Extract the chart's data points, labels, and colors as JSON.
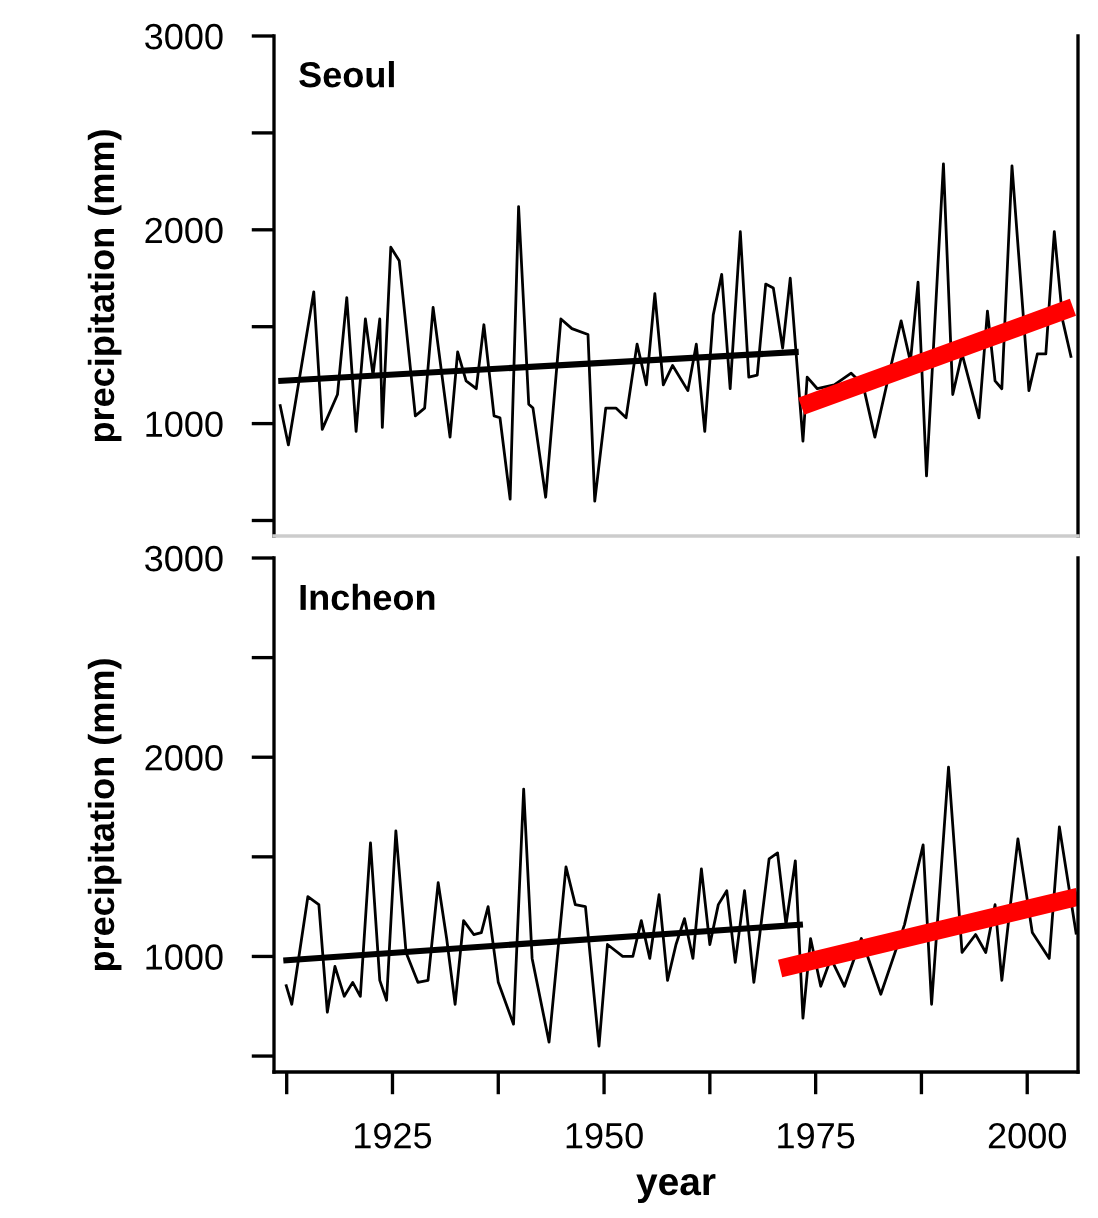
{
  "chart_data": [
    {
      "type": "line",
      "ylabel": "precipitation (mm)",
      "annotations": [
        "Seoul"
      ],
      "xlim": [
        1911,
        2006
      ],
      "ylim": [
        420,
        3000
      ],
      "yticks": [
        {
          "value": 500,
          "label": null
        },
        1000,
        {
          "value": 1500,
          "label": null
        },
        2000,
        {
          "value": 2500,
          "label": null
        },
        3000
      ],
      "tick_labels": "y",
      "grid": false,
      "marker": "none",
      "line_style": "solid",
      "series": [
        {
          "color": "#000000",
          "x": [
            1911.7,
            1912.7,
            1915.7,
            1916.7,
            1918.5,
            1919.6,
            1920.7,
            1921.8,
            1922.7,
            1923.5,
            1923.8,
            1924.8,
            1925.8,
            1927.7,
            1928.8,
            1929.8,
            1931.8,
            1932.7,
            1933.7,
            1934.9,
            1935.8,
            1937.0,
            1937.7,
            1938.9,
            1939.9,
            1941.1,
            1941.6,
            1943.1,
            1944.9,
            1946.2,
            1948.1,
            1948.9,
            1950.2,
            1951.4,
            1952.6,
            1953.9,
            1955.0,
            1956.0,
            1957.0,
            1958.1,
            1959.9,
            1960.9,
            1961.9,
            1962.9,
            1963.9,
            1964.9,
            1966.1,
            1967.1,
            1968.1,
            1969.1,
            1970.0,
            1971.1,
            1972.0,
            1973.5,
            1974.0,
            1975.2,
            1977.2,
            1979.2,
            1980.6,
            1982.0,
            1983.5,
            1985.1,
            1986.2,
            1987.1,
            1988.1,
            1990.1,
            1991.2,
            1992.3,
            1994.3,
            1995.3,
            1996.2,
            1997.0,
            1998.2,
            2000.2,
            2001.2,
            2002.2,
            2003.2,
            2004.2,
            2005.2
          ],
          "values": [
            1100,
            890,
            1680,
            970,
            1150,
            1650,
            960,
            1540,
            1250,
            1540,
            980,
            1910,
            1840,
            1040,
            1080,
            1600,
            930,
            1370,
            1220,
            1180,
            1510,
            1040,
            1030,
            610,
            2120,
            1100,
            1080,
            620,
            1540,
            1490,
            1460,
            600,
            1080,
            1080,
            1030,
            1410,
            1200,
            1670,
            1200,
            1300,
            1170,
            1410,
            960,
            1560,
            1770,
            1180,
            1990,
            1240,
            1250,
            1720,
            1700,
            1390,
            1750,
            910,
            1240,
            1180,
            1200,
            1260,
            1200,
            930,
            1220,
            1530,
            1320,
            1730,
            730,
            2340,
            1150,
            1360,
            1030,
            1580,
            1220,
            1180,
            2330,
            1170,
            1360,
            1360,
            1990,
            1530,
            1340
          ]
        },
        {
          "color": "#000000",
          "x": [
            1911.5,
            1973.0
          ],
          "values": [
            1220,
            1370
          ]
        },
        {
          "color": "#ff0000",
          "x": [
            1973.3,
            2005.4
          ],
          "values": [
            1090,
            1600
          ]
        }
      ]
    },
    {
      "type": "line",
      "ylabel": "precipitation (mm)",
      "xlabel": "year",
      "annotations": [
        "Incheon"
      ],
      "xlim": [
        1911,
        2006
      ],
      "ylim": [
        420,
        3000
      ],
      "xticks": [
        {
          "value": 1912.5,
          "label": null
        },
        1925,
        {
          "value": 1937.5,
          "label": null
        },
        1950,
        {
          "value": 1962.5,
          "label": null
        },
        1975,
        {
          "value": 1987.5,
          "label": null
        },
        2000
      ],
      "yticks": [
        {
          "value": 500,
          "label": null
        },
        1000,
        {
          "value": 1500,
          "label": null
        },
        2000,
        {
          "value": 2500,
          "label": null
        },
        3000
      ],
      "grid": false,
      "marker": "none",
      "line_style": "solid",
      "series": [
        {
          "color": "#000000",
          "x": [
            1912.4,
            1913.1,
            1915.0,
            1916.3,
            1917.3,
            1918.2,
            1919.3,
            1920.3,
            1921.2,
            1922.4,
            1923.5,
            1924.3,
            1925.4,
            1926.6,
            1928.0,
            1929.2,
            1930.4,
            1931.4,
            1932.4,
            1933.4,
            1934.6,
            1935.5,
            1936.3,
            1937.5,
            1939.3,
            1940.5,
            1941.5,
            1943.5,
            1945.5,
            1946.6,
            1947.8,
            1949.4,
            1950.4,
            1952.2,
            1953.4,
            1954.4,
            1955.4,
            1956.5,
            1957.5,
            1958.5,
            1959.5,
            1960.5,
            1961.5,
            1962.5,
            1963.5,
            1964.5,
            1965.5,
            1966.6,
            1967.7,
            1969.5,
            1970.5,
            1971.5,
            1972.6,
            1973.5,
            1974.4,
            1975.6,
            1976.8,
            1978.4,
            1980.4,
            1982.7,
            1985.5,
            1987.7,
            1988.7,
            1990.7,
            1992.3,
            1993.9,
            1995.1,
            1996.2,
            1997.0,
            1998.9,
            2000.6,
            2002.6,
            2003.8,
            2005.8
          ],
          "values": [
            860,
            760,
            1300,
            1260,
            720,
            950,
            800,
            870,
            800,
            1570,
            880,
            780,
            1630,
            1020,
            870,
            880,
            1370,
            1090,
            760,
            1180,
            1110,
            1120,
            1250,
            870,
            660,
            1840,
            990,
            570,
            1450,
            1260,
            1250,
            550,
            1060,
            1000,
            1000,
            1180,
            990,
            1310,
            880,
            1060,
            1190,
            990,
            1440,
            1060,
            1260,
            1330,
            970,
            1330,
            870,
            1490,
            1520,
            1160,
            1480,
            690,
            1090,
            850,
            990,
            850,
            1090,
            810,
            1160,
            1560,
            760,
            1950,
            1020,
            1110,
            1020,
            1260,
            880,
            1590,
            1120,
            990,
            1650,
            1110
          ]
        },
        {
          "color": "#000000",
          "x": [
            1912.1,
            1973.5
          ],
          "values": [
            980,
            1160
          ]
        },
        {
          "color": "#ff0000",
          "x": [
            1970.8,
            2006.0
          ],
          "values": [
            940,
            1300
          ]
        }
      ]
    }
  ]
}
